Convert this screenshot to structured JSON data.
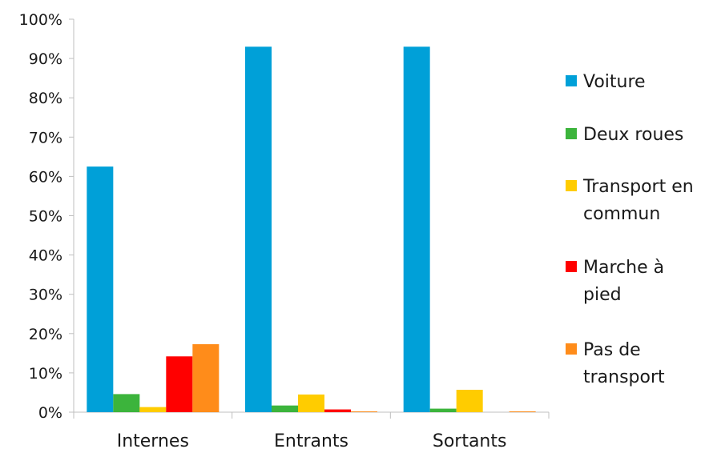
{
  "chart_data": {
    "type": "bar",
    "categories": [
      "Internes",
      "Entrants",
      "Sortants"
    ],
    "series": [
      {
        "name": "Voiture",
        "color": "#00A0D8",
        "values": [
          62.5,
          93.0,
          93.0
        ]
      },
      {
        "name": "Deux roues",
        "color": "#3CB43C",
        "values": [
          4.6,
          1.7,
          0.9
        ]
      },
      {
        "name": "Transport en commun",
        "color": "#FFCC00",
        "values": [
          1.3,
          4.5,
          5.7
        ]
      },
      {
        "name": "Marche à pied",
        "color": "#FF0000",
        "values": [
          14.2,
          0.7,
          0.0
        ]
      },
      {
        "name": "Pas de transport",
        "color": "#FF8C1A",
        "values": [
          17.3,
          0.2,
          0.2
        ]
      }
    ],
    "ylim": [
      0,
      100
    ],
    "yticks": [
      "0%",
      "10%",
      "20%",
      "30%",
      "40%",
      "50%",
      "60%",
      "70%",
      "80%",
      "90%",
      "100%"
    ],
    "grid": false,
    "legend_position": "right",
    "title": "",
    "xlabel": "",
    "ylabel": ""
  }
}
